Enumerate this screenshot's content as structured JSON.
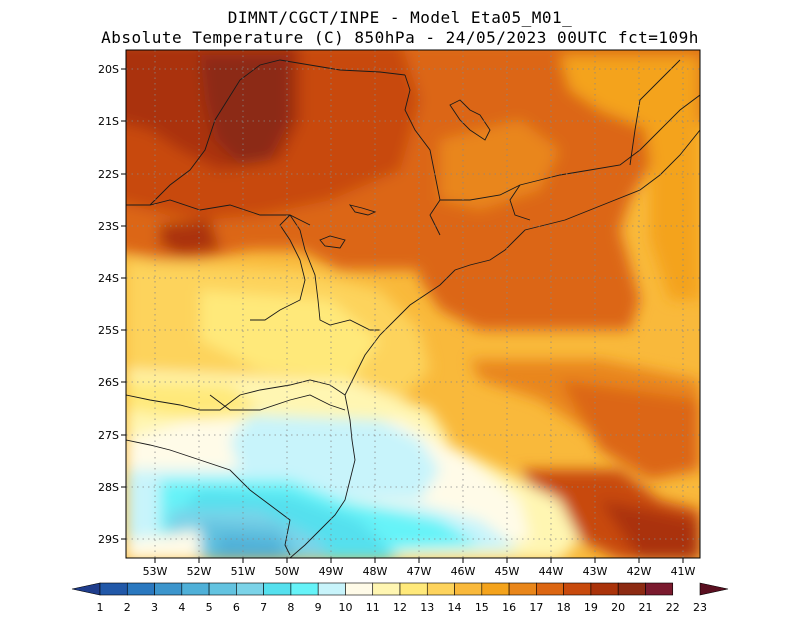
{
  "title_line1": "DIMNT/CGCT/INPE -  Model Eta05_M01_",
  "title_line2": "Absolute Temperature (C) 850hPa -  24/05/2023 00UTC fct=109h",
  "lat_labels": [
    "20S",
    "21S",
    "22S",
    "23S",
    "24S",
    "25S",
    "26S",
    "27S",
    "28S",
    "29S"
  ],
  "lon_labels": [
    "53W",
    "52W",
    "51W",
    "50W",
    "49W",
    "48W",
    "47W",
    "46W",
    "45W",
    "44W",
    "43W",
    "42W",
    "41W"
  ],
  "colorbar": {
    "labels": [
      "1",
      "2",
      "3",
      "4",
      "5",
      "6",
      "7",
      "8",
      "9",
      "10",
      "11",
      "12",
      "13",
      "14",
      "15",
      "16",
      "17",
      "18",
      "19",
      "20",
      "21",
      "22",
      "23"
    ],
    "colors": [
      "#1f3d8c",
      "#2158a8",
      "#2a78bf",
      "#3c95cc",
      "#4fb0d8",
      "#63c3e0",
      "#7bd3e8",
      "#55e0ee",
      "#66f3f8",
      "#c8f4fb",
      "#fffbe8",
      "#fff6b2",
      "#ffe97a",
      "#fdd35c",
      "#f9b93b",
      "#f4a31c",
      "#e9861a",
      "#dc6612",
      "#c84a0d",
      "#aa330a",
      "#8c2a12",
      "#7a1a2e",
      "#5a0f20"
    ]
  },
  "map_features": [
    "coastline",
    "state-borders",
    "country-borders",
    "gridlines"
  ]
}
